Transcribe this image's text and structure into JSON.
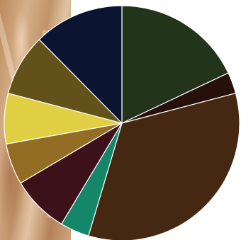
{
  "chart_data": {
    "type": "pie",
    "title": "",
    "start_angle_deg": 0,
    "direction": "clockwise",
    "slices": [
      {
        "value": 18.4,
        "color": "#223419"
      },
      {
        "value": 3.0,
        "color": "#261009"
      },
      {
        "value": 34.5,
        "color": "#442812"
      },
      {
        "value": 4.1,
        "color": "#158769"
      },
      {
        "value": 8.1,
        "color": "#3c1119"
      },
      {
        "value": 5.8,
        "color": "#946d24"
      },
      {
        "value": 7.1,
        "color": "#e0cf43"
      },
      {
        "value": 8.7,
        "color": "#625119"
      },
      {
        "value": 12.7,
        "color": "#0b1531"
      }
    ],
    "stroke_color": "#ffffff",
    "legend": "none"
  }
}
